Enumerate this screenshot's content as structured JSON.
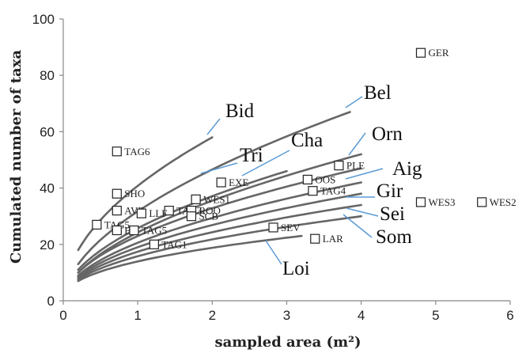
{
  "chart_data": {
    "type": "scatter",
    "title": "",
    "xlabel": "sampled area (m²)",
    "ylabel": "Cumulated number of taxa",
    "xlim": [
      0,
      6
    ],
    "ylim": [
      0,
      100
    ],
    "x_ticks": [
      "0",
      "1",
      "2",
      "3",
      "4",
      "5",
      "6"
    ],
    "y_ticks": [
      "0",
      "20",
      "40",
      "60",
      "80",
      "100"
    ],
    "grid": false,
    "marker": "open-square",
    "points": [
      {
        "label": "GER",
        "x": 4.8,
        "y": 88
      },
      {
        "label": "TAG6",
        "x": 0.72,
        "y": 53
      },
      {
        "label": "PLE",
        "x": 3.7,
        "y": 48
      },
      {
        "label": "OOS",
        "x": 3.28,
        "y": 43
      },
      {
        "label": "EXE",
        "x": 2.12,
        "y": 42
      },
      {
        "label": "TAG4",
        "x": 3.35,
        "y": 39
      },
      {
        "label": "SHO",
        "x": 0.72,
        "y": 38
      },
      {
        "label": "WES1",
        "x": 1.78,
        "y": 36
      },
      {
        "label": "WES3",
        "x": 4.8,
        "y": 35
      },
      {
        "label": "WES2",
        "x": 5.62,
        "y": 35
      },
      {
        "label": "AVE",
        "x": 0.72,
        "y": 32
      },
      {
        "label": "TAG3",
        "x": 1.42,
        "y": 32
      },
      {
        "label": "LLF",
        "x": 1.05,
        "y": 31
      },
      {
        "label": "ROO",
        "x": 1.72,
        "y": 32
      },
      {
        "label": "SCB",
        "x": 1.72,
        "y": 30
      },
      {
        "label": "TAG5",
        "x": 0.45,
        "y": 27
      },
      {
        "label": "SEV",
        "x": 2.82,
        "y": 26
      },
      {
        "label": "BL",
        "x": 0.72,
        "y": 25
      },
      {
        "label": "TAG5",
        "x": 0.95,
        "y": 25
      },
      {
        "label": "LAR",
        "x": 3.38,
        "y": 22
      },
      {
        "label": "TAG1",
        "x": 1.22,
        "y": 20
      }
    ],
    "curves": [
      {
        "name": "Bid",
        "x_end": 2.0,
        "y_end": 58
      },
      {
        "name": "Bel",
        "x_end": 3.85,
        "y_end": 67
      },
      {
        "name": "Tri",
        "x_end": 3.0,
        "y_end": 46
      },
      {
        "name": "Cha",
        "x_end": 4.0,
        "y_end": 52
      },
      {
        "name": "Orn",
        "x_end": 4.0,
        "y_end": 47
      },
      {
        "name": "Aig",
        "x_end": 4.0,
        "y_end": 42
      },
      {
        "name": "Gir",
        "x_end": 4.0,
        "y_end": 38
      },
      {
        "name": "Sei",
        "x_end": 4.0,
        "y_end": 34
      },
      {
        "name": "Som",
        "x_end": 4.0,
        "y_end": 30
      },
      {
        "name": "Loi",
        "x_end": 3.2,
        "y_end": 23
      }
    ]
  }
}
